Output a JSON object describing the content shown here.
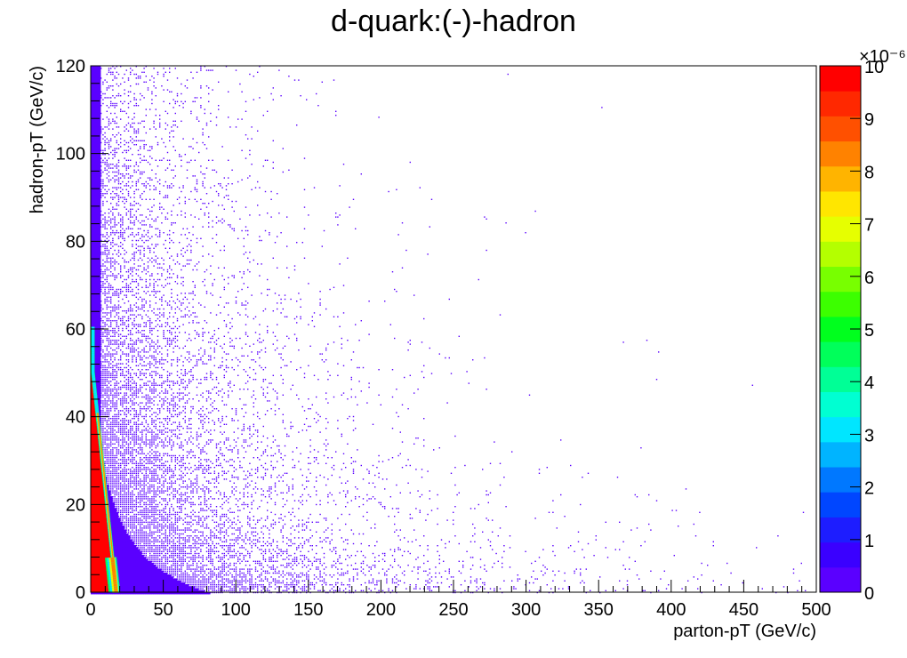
{
  "chart_data": {
    "type": "heatmap",
    "title": "d-quark:(-)-hadron",
    "xlabel": "parton-pT (GeV/c)",
    "ylabel": "hadron-pT (GeV/c)",
    "xlim": [
      0,
      500
    ],
    "ylim": [
      0,
      120
    ],
    "x_ticks": [
      0,
      50,
      100,
      150,
      200,
      250,
      300,
      350,
      400,
      450,
      500
    ],
    "y_ticks": [
      0,
      20,
      40,
      60,
      80,
      100,
      120
    ],
    "colorbar": {
      "range": [
        0,
        10
      ],
      "ticks": [
        0,
        1,
        2,
        3,
        4,
        5,
        6,
        7,
        8,
        9,
        10
      ],
      "multiplier": "×10⁻⁶",
      "colors": [
        "#5a00ff",
        "#3a00ff",
        "#1d1dff",
        "#0046ff",
        "#0078ff",
        "#00b4ff",
        "#00e6ff",
        "#00ffd2",
        "#00ff96",
        "#00ff5a",
        "#00ff1e",
        "#3cff00",
        "#78ff00",
        "#b4ff00",
        "#e6ff00",
        "#ffe600",
        "#ffb400",
        "#ff8200",
        "#ff5000",
        "#ff2800",
        "#ff0000"
      ]
    },
    "description_regions": {
      "high_density_band": "near parton-pT ≈ 0–20 GeV/c, hadron-pT ≈ 0–50 GeV/c (values saturate at 10×10⁻⁶)",
      "sparse_tail": "low-density points extend to parton-pT ≈ 500 GeV/c"
    }
  }
}
